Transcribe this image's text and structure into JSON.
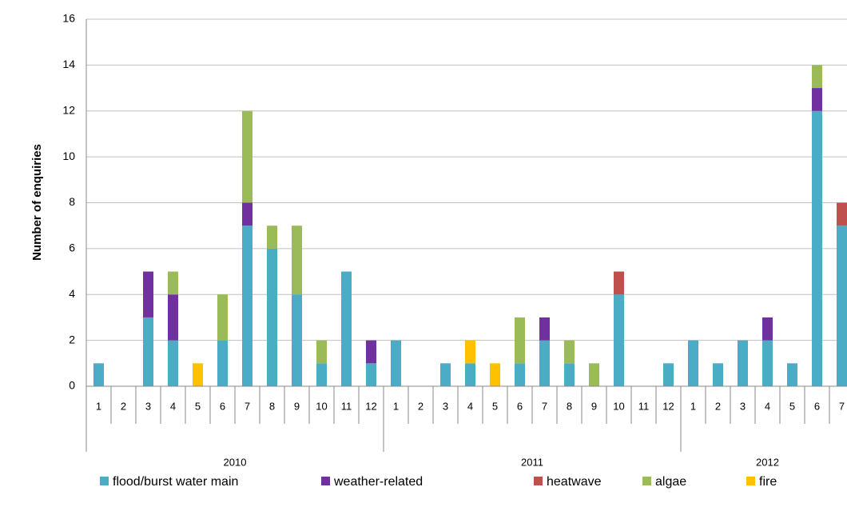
{
  "chart_data": {
    "type": "stacked-bar",
    "y_label": "Number of enquiries",
    "groups": [
      {
        "name": "2010",
        "categories": [
          "1",
          "2",
          "3",
          "4",
          "5",
          "6",
          "7",
          "8",
          "9",
          "10",
          "11",
          "12"
        ]
      },
      {
        "name": "2011",
        "categories": [
          "1",
          "2",
          "3",
          "4",
          "5",
          "6",
          "7",
          "8",
          "9",
          "10",
          "11",
          "12"
        ]
      },
      {
        "name": "2012",
        "categories": [
          "1",
          "2",
          "3",
          "4",
          "5",
          "6",
          "7"
        ]
      }
    ],
    "series": [
      {
        "name": "flood/burst water main",
        "color": "#4bacc6",
        "values": [
          1,
          0,
          3,
          2,
          0,
          2,
          7,
          6,
          4,
          1,
          5,
          1,
          2,
          0,
          1,
          1,
          0,
          1,
          2,
          1,
          0,
          4,
          0,
          1,
          2,
          1,
          2,
          2,
          1,
          12,
          7
        ]
      },
      {
        "name": "weather-related",
        "color": "#7030a0",
        "values": [
          0,
          0,
          2,
          2,
          0,
          0,
          1,
          0,
          0,
          0,
          0,
          1,
          0,
          0,
          0,
          0,
          0,
          0,
          1,
          0,
          0,
          0,
          0,
          0,
          0,
          0,
          0,
          1,
          0,
          1,
          0
        ]
      },
      {
        "name": "heatwave",
        "color": "#c0504d",
        "values": [
          0,
          0,
          0,
          0,
          0,
          0,
          0,
          0,
          0,
          0,
          0,
          0,
          0,
          0,
          0,
          0,
          0,
          0,
          0,
          0,
          0,
          1,
          0,
          0,
          0,
          0,
          0,
          0,
          0,
          0,
          1
        ]
      },
      {
        "name": "algae",
        "color": "#9bbb59",
        "values": [
          0,
          0,
          0,
          1,
          0,
          2,
          4,
          1,
          3,
          1,
          0,
          0,
          0,
          0,
          0,
          0,
          0,
          2,
          0,
          1,
          1,
          0,
          0,
          0,
          0,
          0,
          0,
          0,
          0,
          1,
          0
        ]
      },
      {
        "name": "fire",
        "color": "#ffc000",
        "values": [
          0,
          0,
          0,
          0,
          1,
          0,
          0,
          0,
          0,
          0,
          0,
          0,
          0,
          0,
          0,
          1,
          1,
          0,
          0,
          0,
          0,
          0,
          0,
          0,
          0,
          0,
          0,
          0,
          0,
          0,
          0
        ]
      }
    ],
    "ylim": [
      0,
      16
    ],
    "yticks": [
      0,
      2,
      4,
      6,
      8,
      10,
      12,
      14,
      16
    ],
    "grid": true
  }
}
